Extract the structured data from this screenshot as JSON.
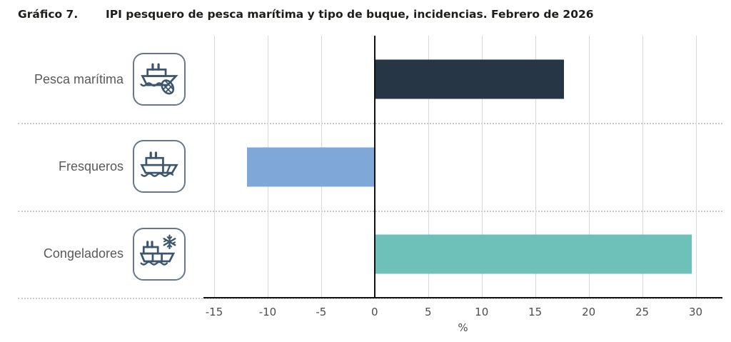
{
  "figure": {
    "label": "Gráfico 7.",
    "title": "IPI pesquero de pesca marítima y tipo de buque, incidencias. Febrero de 2026"
  },
  "chart_data": {
    "type": "bar",
    "orientation": "horizontal",
    "title": "IPI pesquero de pesca marítima y tipo de buque, incidencias. Febrero de 2026",
    "categories": [
      "Pesca marítima",
      "Fresqueros",
      "Congeladores"
    ],
    "values": [
      17.7,
      -11.9,
      29.6
    ],
    "colors": [
      "#263645",
      "#7FA8D8",
      "#6EC1B8"
    ],
    "icons": [
      "marine-fishing-vessel-with-net-icon",
      "fresh-fish-vessel-icon",
      "freezer-vessel-snowflake-icon"
    ],
    "xlabel": "%",
    "xlim": [
      -16,
      32.5
    ],
    "ticks": [
      -15,
      -10,
      -5,
      0,
      5,
      10,
      15,
      20,
      25,
      30
    ],
    "grid": "vertical-only",
    "legend": "none"
  },
  "theme": {
    "title_color": "#1d1d1b",
    "label_color": "#595959",
    "tick_color": "#4d4d4d",
    "grid_color": "#d9d9d9",
    "separator_color": "#c9c9c9",
    "axis_color": "#111111",
    "icon_stroke": "#3c566e",
    "icon_border": "#64788e",
    "background": "#ffffff"
  }
}
